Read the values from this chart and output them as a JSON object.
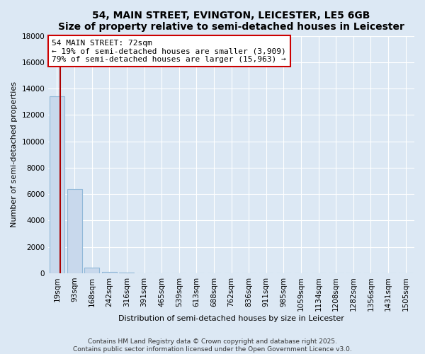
{
  "title": "54, MAIN STREET, EVINGTON, LEICESTER, LE5 6GB",
  "subtitle": "Size of property relative to semi-detached houses in Leicester",
  "xlabel": "Distribution of semi-detached houses by size in Leicester",
  "ylabel": "Number of semi-detached properties",
  "bin_labels": [
    "19sqm",
    "93sqm",
    "168sqm",
    "242sqm",
    "316sqm",
    "391sqm",
    "465sqm",
    "539sqm",
    "613sqm",
    "688sqm",
    "762sqm",
    "836sqm",
    "911sqm",
    "985sqm",
    "1059sqm",
    "1134sqm",
    "1208sqm",
    "1282sqm",
    "1356sqm",
    "1431sqm",
    "1505sqm"
  ],
  "bar_values": [
    13400,
    6400,
    400,
    80,
    20,
    5,
    2,
    1,
    0,
    0,
    0,
    0,
    0,
    0,
    0,
    0,
    0,
    0,
    0,
    0,
    0
  ],
  "bar_color": "#c8d8ec",
  "bar_edge_color": "#90b8d8",
  "ylim": [
    0,
    18000
  ],
  "yticks": [
    0,
    2000,
    4000,
    6000,
    8000,
    10000,
    12000,
    14000,
    16000,
    18000
  ],
  "property_label": "54 MAIN STREET: 72sqm",
  "pct_smaller": 19,
  "count_smaller": 3909,
  "pct_larger": 79,
  "count_larger": 15963,
  "annotation_box_color": "white",
  "annotation_box_edge": "#cc0000",
  "red_line_color": "#aa0000",
  "footer_line1": "Contains HM Land Registry data © Crown copyright and database right 2025.",
  "footer_line2": "Contains public sector information licensed under the Open Government Licence v3.0.",
  "bg_color": "#dce8f4",
  "plot_bg_color": "#dce8f4",
  "grid_color": "#ffffff",
  "title_fontsize": 10,
  "axis_label_fontsize": 8,
  "tick_fontsize": 7.5,
  "annotation_fontsize": 8,
  "footer_fontsize": 6.5
}
